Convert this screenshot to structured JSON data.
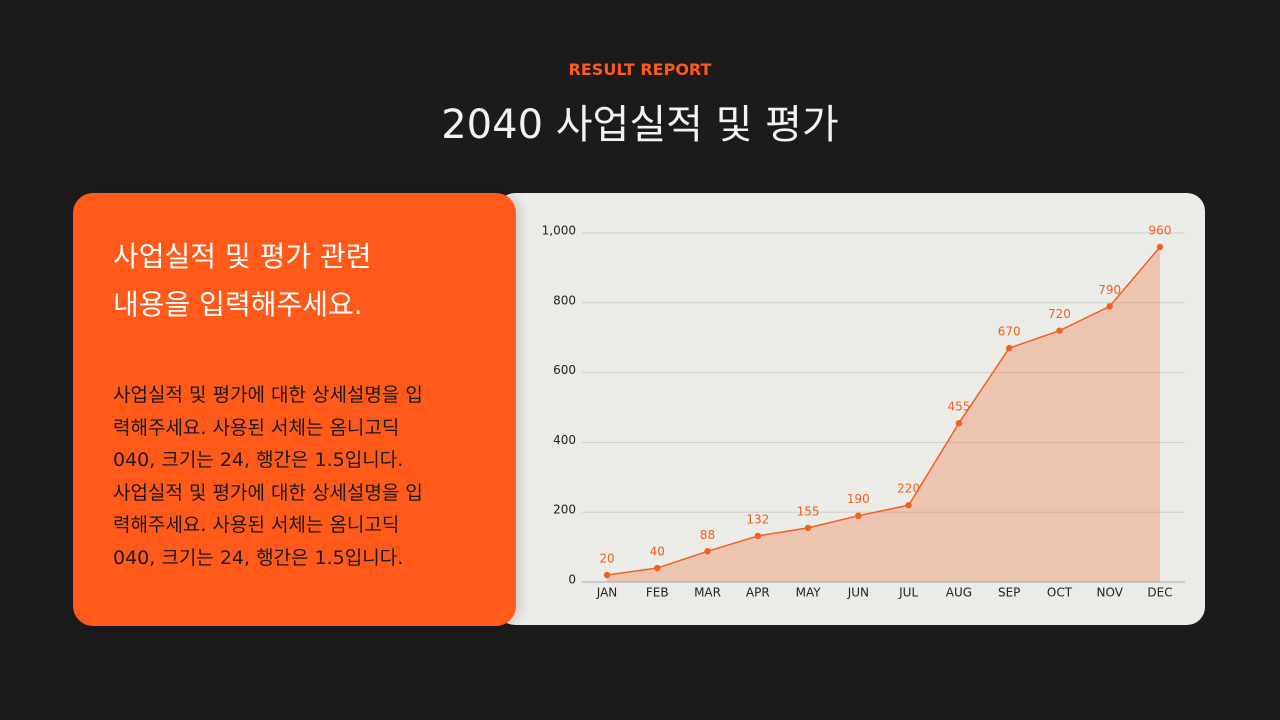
{
  "header": {
    "eyebrow": "RESULT REPORT",
    "title": "2040 사업실적 및 평가"
  },
  "panel": {
    "heading": [
      "사업실적 및 평가 관련",
      "내용을 입력해주세요."
    ],
    "body": [
      "사업실적 및 평가에 대한 상세설명을 입",
      "력해주세요. 사용된 서체는 옴니고딕",
      "040, 크기는 24, 행간은 1.5입니다.",
      "사업실적 및 평가에 대한 상세설명을 입",
      "력해주세요. 사용된 서체는 옴니고딕",
      "040, 크기는 24, 행간은 1.5입니다."
    ]
  },
  "chart_data": {
    "type": "line",
    "categories": [
      "JAN",
      "FEB",
      "MAR",
      "APR",
      "MAY",
      "JUN",
      "JUL",
      "AUG",
      "SEP",
      "OCT",
      "NOV",
      "DEC"
    ],
    "values": [
      20,
      40,
      88,
      132,
      155,
      190,
      220,
      455,
      670,
      720,
      790,
      960
    ],
    "color": "#f2601f",
    "area": true,
    "ylim": [
      0,
      1000
    ],
    "yticks": [
      0,
      200,
      400,
      600,
      800,
      {
        "value": 1000,
        "label": "1,000"
      }
    ],
    "grid": true
  }
}
